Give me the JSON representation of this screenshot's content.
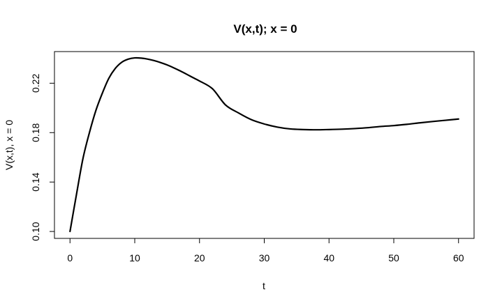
{
  "chart_data": {
    "type": "line",
    "title": "V(x,t); x = 0",
    "xlabel": "t",
    "ylabel": "V(x,t), x = 0",
    "xlim": [
      -2.4,
      62.4
    ],
    "ylim": [
      0.0944,
      0.2456
    ],
    "x_ticks": [
      0,
      10,
      20,
      30,
      40,
      50,
      60
    ],
    "y_ticks": [
      0.1,
      0.14,
      0.18,
      0.22
    ],
    "x_tick_labels": [
      "0",
      "10",
      "20",
      "30",
      "40",
      "50",
      "60"
    ],
    "y_tick_labels": [
      "0.10",
      "0.14",
      "0.18",
      "0.22"
    ],
    "grid": false,
    "line_color": "#000000",
    "series": [
      {
        "x": [
          0,
          1,
          2,
          3,
          4,
          5,
          6,
          7,
          8,
          9,
          10,
          11,
          12,
          13,
          14,
          15,
          16,
          17,
          18,
          19,
          20,
          22,
          24,
          26,
          28,
          30,
          32,
          34,
          36,
          38,
          40,
          42,
          44,
          46,
          48,
          50,
          52,
          54,
          56,
          58,
          60
        ],
        "y": [
          0.1,
          0.13,
          0.159,
          0.18,
          0.198,
          0.212,
          0.224,
          0.232,
          0.237,
          0.2395,
          0.2405,
          0.2403,
          0.2395,
          0.2383,
          0.2367,
          0.2348,
          0.2325,
          0.23,
          0.2273,
          0.2245,
          0.2218,
          0.2155,
          0.2025,
          0.196,
          0.1905,
          0.187,
          0.1845,
          0.183,
          0.1825,
          0.1823,
          0.1825,
          0.1828,
          0.1833,
          0.184,
          0.185,
          0.1857,
          0.1867,
          0.1879,
          0.189,
          0.19,
          0.191
        ]
      }
    ]
  }
}
